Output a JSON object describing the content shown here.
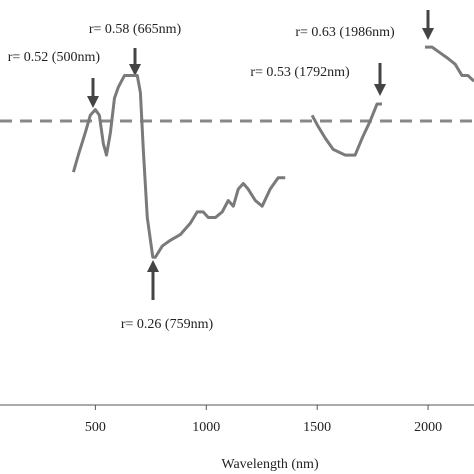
{
  "chart_data": {
    "type": "line",
    "x_label": "Wavelength (nm)",
    "xlim": [
      70,
      2207
    ],
    "xticks": [
      500,
      1000,
      1500,
      2000
    ],
    "ylim": [
      0,
      0.713
    ],
    "reference_line": 0.5,
    "color": "#7a7a7a",
    "x": [
      401,
      423,
      455,
      477,
      500,
      518,
      536,
      550,
      568,
      586,
      604,
      631,
      665,
      689,
      703,
      716,
      734,
      759,
      770,
      802,
      838,
      883,
      928,
      959,
      986,
      1009,
      1041,
      1072,
      1099,
      1122,
      1144,
      1167,
      1189,
      1221,
      1252,
      1288,
      1324,
      1356,
      null,
      1477,
      1505,
      1536,
      1572,
      1626,
      1671,
      1703,
      1739,
      1770,
      1792,
      null,
      1986,
      2018,
      2054,
      2090,
      2122,
      2153,
      2180,
      2207
    ],
    "values": [
      0.41,
      0.44,
      0.48,
      0.51,
      0.52,
      0.51,
      0.46,
      0.44,
      0.48,
      0.54,
      0.56,
      0.58,
      0.58,
      0.58,
      0.55,
      0.45,
      0.33,
      0.26,
      0.26,
      0.28,
      0.29,
      0.3,
      0.32,
      0.34,
      0.34,
      0.33,
      0.33,
      0.34,
      0.36,
      0.35,
      0.38,
      0.39,
      0.38,
      0.36,
      0.35,
      0.38,
      0.4,
      0.4,
      null,
      0.51,
      0.49,
      0.47,
      0.45,
      0.44,
      0.44,
      0.47,
      0.5,
      0.53,
      0.53,
      null,
      0.63,
      0.63,
      0.62,
      0.61,
      0.6,
      0.58,
      0.58,
      0.57
    ],
    "annotations": [
      "r= 0.52 (500nm)",
      "r= 0.58 (665nm)",
      "r= 0.26 (759nm)",
      "r= 0.53 (1792nm)",
      "r= 0.63 (1986nm)"
    ]
  }
}
